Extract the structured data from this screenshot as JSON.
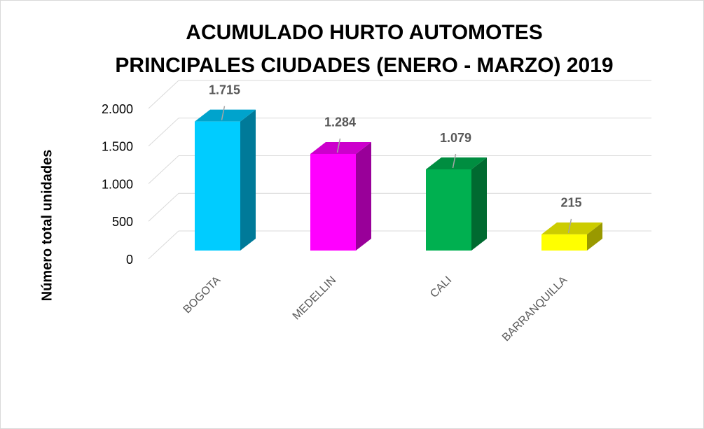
{
  "chart_data": {
    "type": "bar3d",
    "title": [
      "ACUMULADO HURTO AUTOMOTES",
      "PRINCIPALES CIUDADES (ENERO - MARZO) 2019"
    ],
    "y_label": "Número total unidades",
    "categories": [
      "BOGOTA",
      "MEDELLIN",
      "CALI",
      "BARRANQUILLA"
    ],
    "values": [
      1715,
      1284,
      1079,
      215
    ],
    "value_labels": [
      "1.715",
      "1.284",
      "1.079",
      "215"
    ],
    "colors": [
      "#00ccff",
      "#ff00ff",
      "#00b050",
      "#ffff00"
    ],
    "ylim": [
      0,
      2000
    ],
    "yticks": [
      0,
      500,
      {
        "value": 1000,
        "label": "1.000"
      },
      {
        "value": 1500,
        "label": "1.500"
      },
      {
        "value": 2000,
        "label": "2.000"
      }
    ],
    "grid": true
  }
}
